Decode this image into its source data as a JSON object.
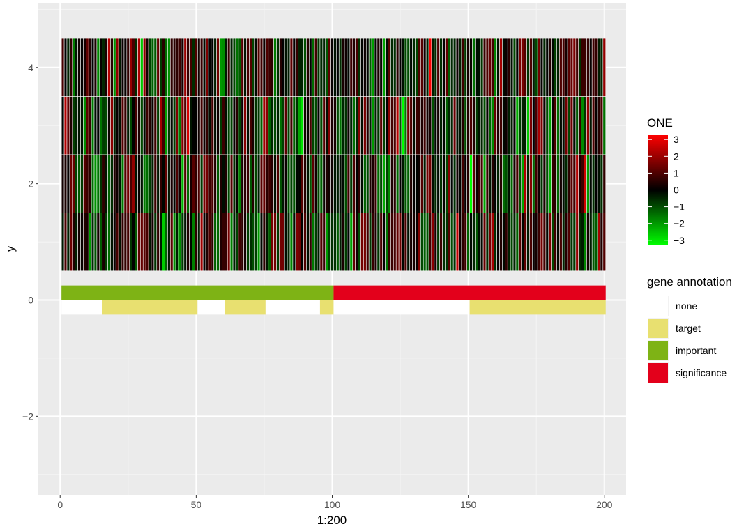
{
  "chart_data": {
    "type": "heatmap",
    "title": "",
    "xlabel": "1:200",
    "ylabel": "y",
    "xlim": [
      -8,
      208
    ],
    "ylim": [
      -3.35,
      5.1
    ],
    "x_ticks": [
      0,
      50,
      100,
      150,
      200
    ],
    "x_tick_labels": [
      "0",
      "50",
      "100",
      "150",
      "200"
    ],
    "y_ticks": [
      -2,
      0,
      2,
      4
    ],
    "y_tick_labels": [
      "−2",
      "0",
      "2",
      "4"
    ],
    "grid": true,
    "heatmap": {
      "columns": 200,
      "rows": [
        1,
        2,
        3,
        4
      ],
      "value_range": [
        -3.3,
        3.3
      ],
      "note_values": "random values per cell, rendered procedurally"
    },
    "annotation_tracks": [
      {
        "y": 0.125,
        "segments": [
          {
            "start": 1,
            "end": 100,
            "category": "important"
          },
          {
            "start": 101,
            "end": 200,
            "category": "significance"
          }
        ]
      },
      {
        "y": -0.125,
        "segments": [
          {
            "start": 1,
            "end": 15,
            "category": "none"
          },
          {
            "start": 16,
            "end": 50,
            "category": "target"
          },
          {
            "start": 51,
            "end": 60,
            "category": "none"
          },
          {
            "start": 61,
            "end": 75,
            "category": "target"
          },
          {
            "start": 76,
            "end": 95,
            "category": "none"
          },
          {
            "start": 96,
            "end": 100,
            "category": "target"
          },
          {
            "start": 101,
            "end": 150,
            "category": "none"
          },
          {
            "start": 151,
            "end": 200,
            "category": "target"
          }
        ]
      }
    ],
    "legend_colorbar": {
      "title": "ONE",
      "ticks": [
        3,
        2,
        1,
        0,
        -1,
        -2,
        -3
      ],
      "tick_labels": [
        "3",
        "2",
        "1",
        "0",
        "−1",
        "−2",
        "−3"
      ],
      "low_color": "#00FF00",
      "mid_color": "#000000",
      "high_color": "#FF0000",
      "placement": "right"
    },
    "legend_annotation": {
      "title": "gene annotation",
      "placement": "right",
      "items": [
        {
          "label": "none",
          "color": "#FFFFFF"
        },
        {
          "label": "target",
          "color": "#E8E070"
        },
        {
          "label": "important",
          "color": "#7EB315"
        },
        {
          "label": "significance",
          "color": "#E3001B"
        }
      ]
    }
  }
}
